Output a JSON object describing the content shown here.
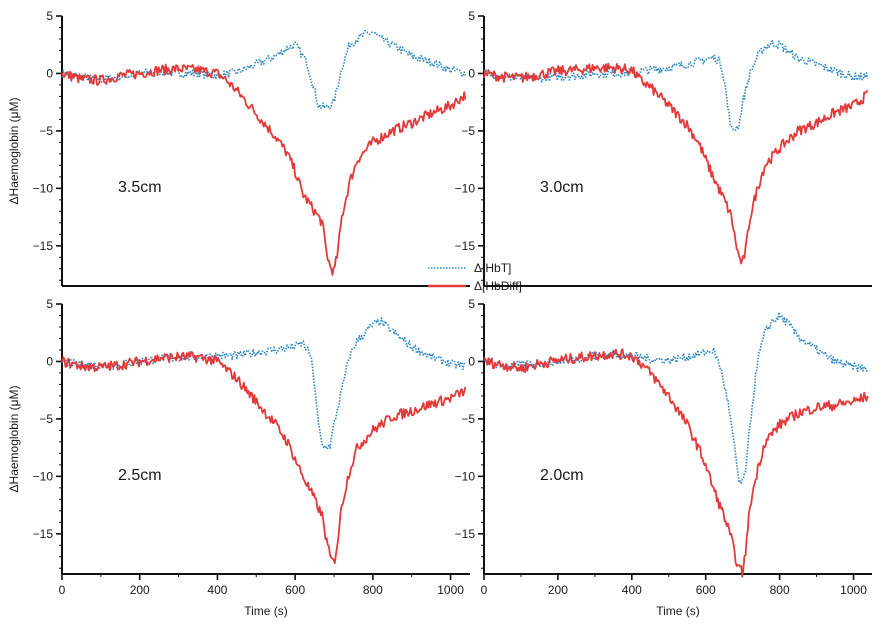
{
  "chart_data": {
    "type": "line",
    "layout": "2x2 panels, shared axes",
    "xlabel": "Time (s)",
    "ylabel": "ΔHaemoglobin (μM)",
    "xlim": [
      0,
      1050
    ],
    "ylim": [
      -18.5,
      5
    ],
    "xticks": [
      0,
      200,
      400,
      600,
      800,
      1000
    ],
    "yticks": [
      5,
      0,
      -5,
      -10,
      -15
    ],
    "legend": [
      {
        "name": "Δ[HbT]",
        "color": "#2b86c3",
        "style": "dotted"
      },
      {
        "name": "Δ[HbDiff]",
        "color": "#e23a3a",
        "style": "solid"
      }
    ],
    "legend_position": "center",
    "panels": [
      {
        "label": "3.5cm",
        "series": [
          {
            "name": "Δ[HbT]",
            "x": [
              0,
              50,
              100,
              150,
              200,
              250,
              300,
              350,
              400,
              450,
              500,
              550,
              580,
              600,
              630,
              650,
              660,
              680,
              700,
              720,
              740,
              760,
              780,
              800,
              820,
              850,
              900,
              950,
              1000,
              1040
            ],
            "y": [
              0,
              -0.3,
              -0.5,
              -0.3,
              0,
              0.2,
              0,
              0,
              -0.2,
              0.1,
              0.8,
              1.5,
              2.2,
              2.5,
              1.0,
              -1.5,
              -2.8,
              -3.0,
              -2.5,
              0.5,
              2.5,
              3.0,
              3.4,
              3.6,
              3.0,
              2.5,
              1.5,
              1.0,
              0.3,
              0.0
            ]
          },
          {
            "name": "Δ[HbDiff]",
            "x": [
              0,
              50,
              100,
              150,
              200,
              250,
              300,
              350,
              400,
              420,
              450,
              500,
              550,
              580,
              600,
              620,
              650,
              670,
              680,
              690,
              700,
              710,
              720,
              740,
              760,
              800,
              850,
              900,
              950,
              1000,
              1040
            ],
            "y": [
              0,
              -0.5,
              -0.6,
              -0.2,
              0,
              0.3,
              0.4,
              0.3,
              0,
              -0.5,
              -1.5,
              -3.5,
              -5.5,
              -7.0,
              -8.5,
              -10.5,
              -12.0,
              -13.0,
              -15.5,
              -16.8,
              -17.3,
              -15.5,
              -12.5,
              -9.5,
              -7.5,
              -6.0,
              -5.0,
              -4.3,
              -3.5,
              -2.8,
              -1.8
            ]
          }
        ]
      },
      {
        "label": "3.0cm",
        "series": [
          {
            "name": "Δ[HbT]",
            "x": [
              0,
              50,
              100,
              150,
              200,
              250,
              300,
              350,
              400,
              450,
              500,
              550,
              600,
              620,
              640,
              650,
              660,
              670,
              690,
              700,
              720,
              740,
              760,
              780,
              800,
              820,
              850,
              900,
              950,
              1000,
              1040
            ],
            "y": [
              0,
              -0.3,
              -0.4,
              -0.4,
              -0.3,
              -0.2,
              0,
              0,
              0.1,
              0.3,
              0.5,
              0.8,
              1.2,
              1.4,
              1.0,
              -0.5,
              -3.0,
              -5.0,
              -4.5,
              -2.5,
              0,
              1.5,
              2.3,
              2.6,
              2.5,
              2.0,
              1.3,
              0.8,
              0.2,
              -0.3,
              -0.3
            ]
          },
          {
            "name": "Δ[HbDiff]",
            "x": [
              0,
              50,
              100,
              150,
              200,
              250,
              300,
              350,
              400,
              420,
              450,
              500,
              550,
              580,
              600,
              620,
              650,
              670,
              680,
              690,
              700,
              710,
              720,
              740,
              760,
              800,
              850,
              900,
              950,
              1000,
              1040
            ],
            "y": [
              0,
              -0.3,
              -0.4,
              -0.1,
              0.2,
              0.3,
              0.5,
              0.5,
              0.3,
              -0.5,
              -1.2,
              -2.8,
              -4.5,
              -6.0,
              -7.5,
              -9.0,
              -11.0,
              -12.5,
              -14.5,
              -16.0,
              -16.6,
              -15.0,
              -12.5,
              -10.0,
              -8.0,
              -6.5,
              -5.0,
              -4.3,
              -3.4,
              -2.8,
              -1.8
            ]
          }
        ]
      },
      {
        "label": "2.5cm",
        "series": [
          {
            "name": "Δ[HbT]",
            "x": [
              0,
              50,
              100,
              150,
              200,
              250,
              300,
              350,
              400,
              450,
              500,
              550,
              600,
              620,
              640,
              650,
              660,
              670,
              690,
              700,
              720,
              740,
              760,
              780,
              800,
              820,
              850,
              900,
              950,
              1000,
              1040
            ],
            "y": [
              0,
              -0.3,
              -0.4,
              -0.3,
              0,
              0.2,
              0.3,
              0.4,
              0.5,
              0.5,
              0.8,
              1.0,
              1.3,
              1.6,
              0.5,
              -2.0,
              -5.5,
              -7.5,
              -7.3,
              -5.5,
              -2.5,
              0.5,
              1.8,
              2.5,
              3.2,
              3.5,
              2.6,
              1.3,
              0.4,
              -0.2,
              -0.4
            ]
          },
          {
            "name": "Δ[HbDiff]",
            "x": [
              0,
              50,
              100,
              150,
              200,
              250,
              300,
              350,
              400,
              420,
              450,
              500,
              550,
              580,
              600,
              620,
              650,
              670,
              680,
              690,
              700,
              710,
              720,
              740,
              760,
              800,
              850,
              900,
              950,
              1000,
              1040
            ],
            "y": [
              0,
              -0.4,
              -0.5,
              -0.3,
              0,
              0.3,
              0.4,
              0.4,
              0,
              -0.6,
              -1.5,
              -3.5,
              -5.5,
              -7.0,
              -8.5,
              -10.0,
              -12.0,
              -13.5,
              -15.5,
              -17.0,
              -17.6,
              -15.5,
              -12.5,
              -9.5,
              -7.5,
              -6.0,
              -4.8,
              -4.3,
              -3.7,
              -3.2,
              -2.5
            ]
          }
        ]
      },
      {
        "label": "2.0cm",
        "series": [
          {
            "name": "Δ[HbT]",
            "x": [
              0,
              50,
              100,
              150,
              200,
              250,
              300,
              350,
              400,
              450,
              500,
              550,
              600,
              620,
              640,
              660,
              680,
              690,
              700,
              710,
              720,
              740,
              760,
              780,
              800,
              820,
              850,
              900,
              950,
              1000,
              1040
            ],
            "y": [
              0,
              -0.4,
              -0.3,
              -0.2,
              0,
              0.2,
              0.5,
              0.6,
              0.5,
              0.2,
              0.1,
              0.4,
              0.8,
              1.0,
              -0.5,
              -3.5,
              -8.0,
              -10.5,
              -10.6,
              -9.0,
              -5.5,
              0,
              2.5,
              3.5,
              4.0,
              3.4,
              2.2,
              1.0,
              0,
              -0.5,
              -0.6
            ]
          },
          {
            "name": "Δ[HbDiff]",
            "x": [
              0,
              50,
              100,
              150,
              200,
              250,
              300,
              350,
              400,
              420,
              450,
              500,
              550,
              580,
              600,
              620,
              650,
              670,
              680,
              690,
              700,
              710,
              720,
              740,
              760,
              800,
              850,
              900,
              950,
              1000,
              1040
            ],
            "y": [
              0,
              -0.3,
              -0.6,
              -0.2,
              0.1,
              0.3,
              0.5,
              0.7,
              0.5,
              0,
              -1.0,
              -3.0,
              -5.5,
              -7.5,
              -9.0,
              -11.0,
              -13.5,
              -15.5,
              -17.0,
              -18.0,
              -18.4,
              -16.0,
              -12.5,
              -9.5,
              -7.0,
              -5.5,
              -4.5,
              -4.0,
              -3.8,
              -3.5,
              -3.0
            ]
          }
        ]
      }
    ]
  }
}
